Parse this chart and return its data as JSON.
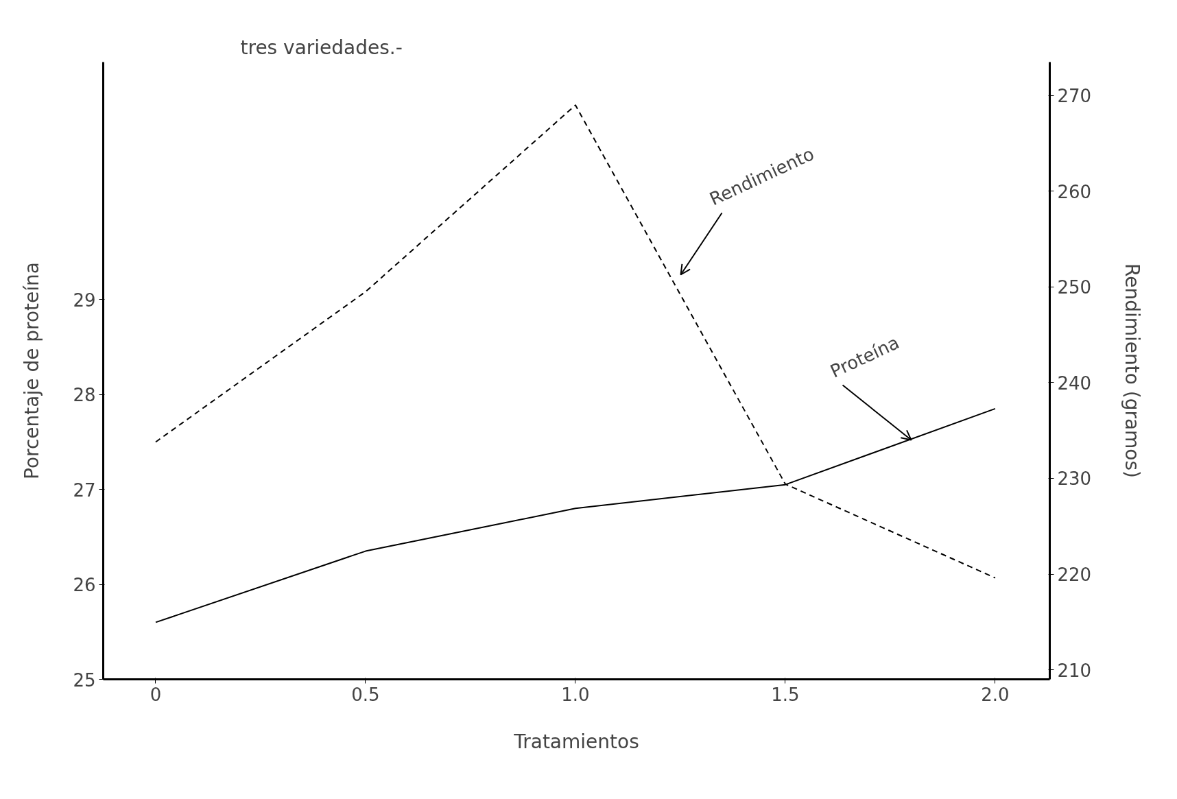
{
  "chart_data": {
    "type": "line",
    "title": "tres variedades.-",
    "xlabel": "Tratamientos",
    "ylabel": "Porcentaje de proteína",
    "y2label": "Rendimiento (gramos)",
    "x": [
      0,
      0.5,
      1.0,
      1.5,
      2.0
    ],
    "series": [
      {
        "color": "#000000",
        "line_style": "solid",
        "values": [
          25.6,
          26.35,
          26.8,
          27.05,
          27.85
        ]
      },
      {
        "color": "#000000",
        "line_style": "dashed",
        "axis": "y2",
        "values": [
          233.8,
          249.5,
          269,
          229.4,
          219.6
        ]
      }
    ],
    "xlim": [
      -0.125,
      2.13
    ],
    "xticks": [
      {
        "value": 0,
        "label": "0"
      },
      {
        "value": 0.5,
        "label": "0.5"
      },
      {
        "value": 1.0,
        "label": "1.0"
      },
      {
        "value": 1.5,
        "label": "1.5"
      },
      {
        "value": 2.0,
        "label": "2.0"
      }
    ],
    "ylim": [
      25,
      31.5
    ],
    "yticks": [
      25,
      26,
      27,
      28,
      29
    ],
    "y2lim": [
      209,
      273.5
    ],
    "y2ticks": [
      210,
      220,
      230,
      240,
      250,
      260,
      270
    ],
    "annotations": [
      "Rendimiento",
      {
        "text": "Proteína",
        "x": 1.8,
        "y": 27.52
      }
    ],
    "grid": false,
    "marker": "none"
  }
}
